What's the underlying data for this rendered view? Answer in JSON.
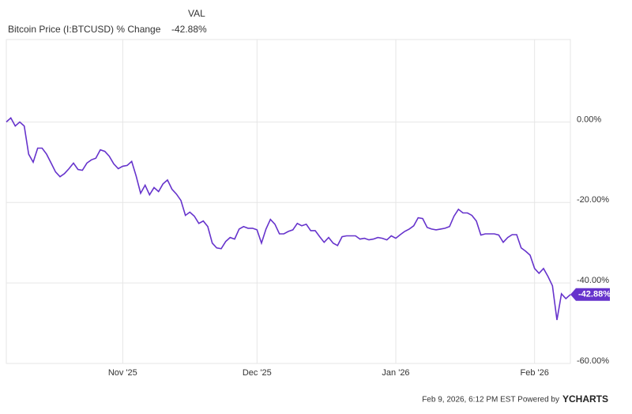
{
  "chart_data": {
    "type": "line",
    "legend_header": "VAL",
    "categories": [
      null,
      null,
      null,
      null,
      null,
      null,
      null,
      null,
      null,
      null,
      null,
      null,
      null,
      null,
      null,
      null,
      null,
      null,
      null,
      null,
      null,
      null,
      null,
      null,
      null,
      null,
      "Nov '25",
      null,
      null,
      null,
      null,
      null,
      null,
      null,
      null,
      null,
      null,
      null,
      null,
      null,
      null,
      null,
      null,
      null,
      null,
      null,
      null,
      null,
      null,
      null,
      null,
      null,
      null,
      null,
      null,
      null,
      "Dec '25",
      null,
      null,
      null,
      null,
      null,
      null,
      null,
      null,
      null,
      null,
      null,
      null,
      null,
      null,
      null,
      null,
      null,
      null,
      null,
      null,
      null,
      null,
      null,
      null,
      null,
      null,
      null,
      null,
      null,
      null,
      "Jan '26",
      null,
      null,
      null,
      null,
      null,
      null,
      null,
      null,
      null,
      null,
      null,
      null,
      null,
      null,
      null,
      null,
      null,
      null,
      null,
      null,
      null,
      null,
      null,
      null,
      null,
      null,
      null,
      null,
      null,
      null,
      "Feb '26",
      null,
      null,
      null,
      null,
      null,
      null,
      null,
      null
    ],
    "series": [
      {
        "name": "Bitcoin Price (I:BTCUSD) % Change",
        "color": "#6633cc",
        "values": [
          0,
          1,
          -1,
          0,
          -1,
          -8,
          -10,
          -6.5,
          -6.5,
          -8,
          -10.2,
          -12.4,
          -13.6,
          -12.8,
          -11.6,
          -10.2,
          -11.8,
          -12,
          -10.2,
          -9.4,
          -9,
          -6.9,
          -7.3,
          -8.5,
          -10.4,
          -11.6,
          -11,
          -10.8,
          -9.8,
          -13.4,
          -17.7,
          -15.7,
          -18.1,
          -16.3,
          -17.3,
          -15.4,
          -14.4,
          -16.7,
          -17.9,
          -19.5,
          -23.2,
          -22.4,
          -23.4,
          -25.2,
          -24.6,
          -26,
          -30.1,
          -31.3,
          -31.5,
          -29.7,
          -28.7,
          -29.1,
          -26.6,
          -26,
          -26.4,
          -26.4,
          -26.8,
          -30.1,
          -26.6,
          -24.2,
          -25.4,
          -27.8,
          -27.8,
          -27.2,
          -26.8,
          -25.2,
          -25.8,
          -25.4,
          -27,
          -27,
          -28.5,
          -29.9,
          -28.7,
          -30.1,
          -30.7,
          -28.5,
          -28.3,
          -28.3,
          -28.3,
          -29.1,
          -28.9,
          -29.3,
          -29.1,
          -28.7,
          -28.9,
          -29.3,
          -28.3,
          -28.9,
          -28,
          -27.2,
          -26.6,
          -25.8,
          -23.8,
          -24,
          -26.2,
          -26.6,
          -26.8,
          -26.6,
          -26.4,
          -26,
          -23.4,
          -21.7,
          -22.6,
          -22.6,
          -23.2,
          -24.6,
          -28.1,
          -27.8,
          -27.8,
          -27.8,
          -28.1,
          -29.9,
          -28.7,
          -28,
          -28,
          -31.3,
          -32.1,
          -33.1,
          -36.4,
          -37.6,
          -36.4,
          -38.4,
          -40.7,
          -49.2,
          -42.7,
          -43.9,
          -42.88
        ],
        "value_labels": [
          null,
          null,
          null,
          null,
          null,
          null,
          null,
          null,
          null,
          null,
          null,
          null,
          null,
          null,
          null,
          null,
          null,
          null,
          null,
          null,
          null,
          null,
          null,
          null,
          null,
          null,
          null,
          null,
          null,
          null,
          null,
          null,
          null,
          null,
          null,
          null,
          null,
          null,
          null,
          null,
          null,
          null,
          null,
          null,
          null,
          null,
          null,
          null,
          null,
          null,
          null,
          null,
          null,
          null,
          null,
          null,
          null,
          null,
          null,
          null,
          null,
          null,
          null,
          null,
          null,
          null,
          null,
          null,
          null,
          null,
          null,
          null,
          null,
          null,
          null,
          null,
          null,
          null,
          null,
          null,
          null,
          null,
          null,
          null,
          null,
          null,
          null,
          null,
          null,
          null,
          null,
          null,
          null,
          null,
          null,
          null,
          null,
          null,
          null,
          null,
          null,
          null,
          null,
          null,
          null,
          null,
          null,
          null,
          null,
          null,
          null,
          null,
          null,
          null,
          null,
          null,
          null,
          null,
          null,
          null,
          null,
          null,
          null,
          null,
          null,
          null,
          "-42.88%"
        ]
      }
    ],
    "ylim": [
      -60,
      20.5
    ],
    "yticks": [
      {
        "value": 0,
        "label": "0.00%"
      },
      {
        "value": -20,
        "label": "-20.00%"
      },
      {
        "value": -40,
        "label": "-40.00%"
      },
      {
        "value": -60,
        "label": "-60.00%"
      }
    ],
    "grid": true,
    "footer": "Feb 9, 2026, 6:12 PM EST Powered by",
    "brand": "YCHARTS"
  }
}
